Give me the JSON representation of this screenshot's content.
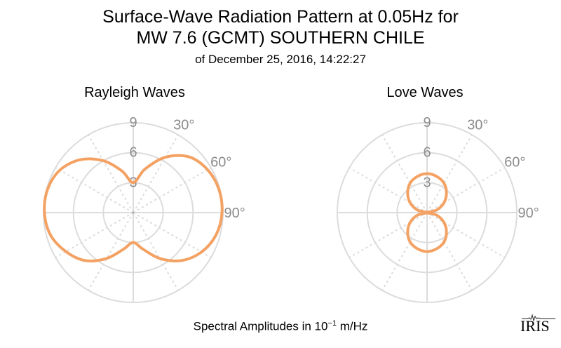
{
  "title": {
    "line1": "Surface-Wave Radiation Pattern at 0.05Hz for",
    "line2": "MW 7.6 (GCMT) SOUTHERN CHILE",
    "line3": "of December 25, 2016, 14:22:27"
  },
  "footer": {
    "prefix": "Spectral Amplitudes in 10",
    "exponent": "−1",
    "unit": " m/Hz"
  },
  "logo_text": "IRIS",
  "colors": {
    "curve": "#f4a264",
    "grid": "#dcdcdc",
    "label": "#8c8c8c"
  },
  "chart_data": [
    {
      "type": "polar",
      "title": "Rayleigh Waves",
      "radial_ticks": [
        "3",
        "6",
        "9"
      ],
      "radial_tick_values": [
        3,
        6,
        9
      ],
      "rmax": 9,
      "angle_labels": [
        "30°",
        "60°",
        "90°"
      ],
      "angle_label_values": [
        30,
        60,
        90
      ],
      "spokes_deg": [
        0,
        30,
        60,
        90,
        120,
        150,
        180,
        210,
        240,
        270,
        300,
        330
      ],
      "series": [
        {
          "angles_deg": [
            0,
            15,
            30,
            45,
            60,
            75,
            90,
            105,
            120,
            135,
            150,
            165,
            180,
            195,
            210,
            225,
            240,
            255,
            270,
            285,
            300,
            315,
            330,
            345
          ],
          "values": [
            3.0,
            4.5,
            6.4,
            7.9,
            8.6,
            8.9,
            8.9,
            8.6,
            7.9,
            6.8,
            5.3,
            3.8,
            3.0,
            3.8,
            5.3,
            6.8,
            7.8,
            8.6,
            8.9,
            8.9,
            8.5,
            7.5,
            6.0,
            4.3
          ]
        }
      ]
    },
    {
      "type": "polar",
      "title": "Love Waves",
      "radial_ticks": [
        "3",
        "6",
        "9"
      ],
      "radial_tick_values": [
        3,
        6,
        9
      ],
      "rmax": 9,
      "angle_labels": [
        "30°",
        "60°",
        "90°"
      ],
      "angle_label_values": [
        30,
        60,
        90
      ],
      "spokes_deg": [
        0,
        30,
        60,
        90,
        120,
        150,
        180,
        210,
        240,
        270,
        300,
        330
      ],
      "series": [
        {
          "angles_deg": [
            0,
            15,
            30,
            45,
            60,
            75,
            90,
            105,
            120,
            135,
            150,
            165,
            180,
            195,
            210,
            225,
            240,
            255,
            270,
            285,
            300,
            315,
            330,
            345
          ],
          "values": [
            3.9,
            3.75,
            3.4,
            2.75,
            1.95,
            1.0,
            0.0,
            1.0,
            1.95,
            2.75,
            3.4,
            3.75,
            3.9,
            3.75,
            3.4,
            2.75,
            1.95,
            1.0,
            0.0,
            1.0,
            1.95,
            2.75,
            3.4,
            3.75
          ]
        }
      ]
    }
  ]
}
